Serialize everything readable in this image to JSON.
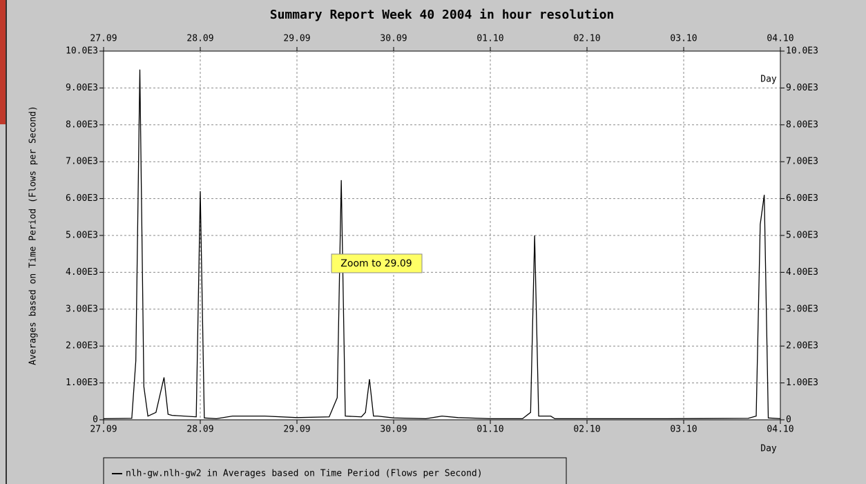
{
  "chart_data": {
    "type": "line",
    "title": "Summary Report Week 40 2004 in hour resolution",
    "ylabel": "Averages based on Time Period (Flows per Second)",
    "xlabel": "Day",
    "tooltip": "Zoom to 29.09",
    "x": [
      0,
      7,
      8,
      9,
      10,
      11,
      13,
      15,
      16,
      17,
      23,
      24,
      25,
      28,
      32,
      40,
      48,
      56,
      58,
      59,
      60,
      64,
      65,
      66,
      67,
      68,
      72,
      80,
      84,
      88,
      96,
      104,
      106,
      107,
      108,
      111,
      112,
      120,
      140,
      160,
      162,
      163,
      164,
      165,
      168
    ],
    "series": [
      {
        "name": "nlh-gw.nlh-gw2 in Averages based on Time Period (Flows per Second)",
        "color": "#000000",
        "values": [
          30,
          40,
          1600,
          9500,
          900,
          100,
          200,
          1150,
          150,
          120,
          80,
          6200,
          50,
          30,
          100,
          100,
          60,
          80,
          600,
          6500,
          100,
          80,
          200,
          1100,
          100,
          100,
          50,
          30,
          100,
          60,
          30,
          30,
          200,
          5000,
          100,
          100,
          30,
          30,
          30,
          40,
          100,
          5300,
          6100,
          50,
          30
        ]
      }
    ],
    "xlim": [
      0,
      168
    ],
    "xticks": [
      {
        "value": 0,
        "label": "27.09"
      },
      {
        "value": 24,
        "label": "28.09"
      },
      {
        "value": 48,
        "label": "29.09"
      },
      {
        "value": 72,
        "label": "30.09"
      },
      {
        "value": 96,
        "label": "01.10"
      },
      {
        "value": 120,
        "label": "02.10"
      },
      {
        "value": 144,
        "label": "03.10"
      },
      {
        "value": 168,
        "label": "04.10"
      }
    ],
    "ylim": [
      0,
      10000
    ],
    "yticks": [
      0,
      {
        "value": 1000,
        "label": "1.00E3"
      },
      {
        "value": 2000,
        "label": "2.00E3"
      },
      {
        "value": 3000,
        "label": "3.00E3"
      },
      {
        "value": 4000,
        "label": "4.00E3"
      },
      {
        "value": 5000,
        "label": "5.00E3"
      },
      {
        "value": 6000,
        "label": "6.00E3"
      },
      {
        "value": 7000,
        "label": "7.00E3"
      },
      {
        "value": 8000,
        "label": "8.00E3"
      },
      {
        "value": 9000,
        "label": "9.00E3"
      },
      {
        "value": 10000,
        "label": "10.0E3"
      }
    ],
    "grid": true
  }
}
